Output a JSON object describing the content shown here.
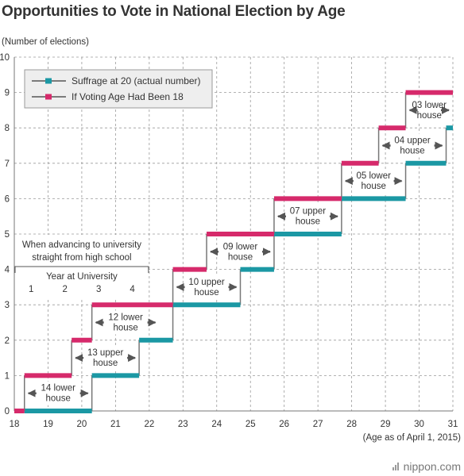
{
  "chart_data": {
    "type": "line",
    "title": "Opportunities to Vote in National Election by Age",
    "ylabel": "(Number of elections)",
    "xlabel": "(Age as of April 1, 2015)",
    "x_ticks": [
      "18",
      "19",
      "20",
      "21",
      "22",
      "23",
      "24",
      "25",
      "26",
      "27",
      "28",
      "29",
      "30",
      "31"
    ],
    "y_ticks": [
      "0",
      "1",
      "2",
      "3",
      "4",
      "5",
      "6",
      "7",
      "8",
      "9",
      "10"
    ],
    "xlim": [
      18,
      31
    ],
    "ylim": [
      0,
      10
    ],
    "grid": true,
    "legend_position": "top-left",
    "series": [
      {
        "name": "Suffrage at 20 (actual number)",
        "color": "#1b98a4",
        "steps": [
          [
            18.3,
            0
          ],
          [
            20.3,
            1
          ],
          [
            21.7,
            2
          ],
          [
            22.7,
            3
          ],
          [
            24.7,
            4
          ],
          [
            25.7,
            5
          ],
          [
            27.7,
            6
          ],
          [
            29.6,
            7
          ],
          [
            30.8,
            8
          ],
          [
            31,
            8
          ]
        ]
      },
      {
        "name": "If Voting Age Had Been 18",
        "color": "#d62a6b",
        "steps": [
          [
            18,
            0
          ],
          [
            18.3,
            1
          ],
          [
            19.7,
            2
          ],
          [
            20.3,
            3
          ],
          [
            22.7,
            4
          ],
          [
            23.7,
            5
          ],
          [
            25.7,
            6
          ],
          [
            27.7,
            7
          ],
          [
            28.8,
            8
          ],
          [
            29.6,
            9
          ],
          [
            31,
            9
          ]
        ]
      }
    ],
    "annotations": [
      {
        "lines": [
          "14 lower",
          "house"
        ],
        "x1": 18.3,
        "x2": 20.3,
        "y": 0.5
      },
      {
        "lines": [
          "13 upper",
          "house"
        ],
        "x1": 19.7,
        "x2": 21.7,
        "y": 1.5
      },
      {
        "lines": [
          "12 lower",
          "house"
        ],
        "x1": 20.3,
        "x2": 22.3,
        "y": 2.5
      },
      {
        "lines": [
          "10 upper",
          "house"
        ],
        "x1": 22.7,
        "x2": 24.7,
        "y": 3.5
      },
      {
        "lines": [
          "09 lower",
          "house"
        ],
        "x1": 23.7,
        "x2": 25.7,
        "y": 4.5
      },
      {
        "lines": [
          "07 upper",
          "house"
        ],
        "x1": 25.7,
        "x2": 27.7,
        "y": 5.5
      },
      {
        "lines": [
          "05 lower",
          "house"
        ],
        "x1": 27.7,
        "x2": 29.6,
        "y": 6.5
      },
      {
        "lines": [
          "04 upper",
          "house"
        ],
        "x1": 28.8,
        "x2": 30.8,
        "y": 7.5
      },
      {
        "lines": [
          "03 lower",
          "house"
        ],
        "x1": 29.6,
        "x2": 31.0,
        "y": 8.5
      }
    ],
    "university_note": {
      "lines": [
        "When advancing to university",
        "straight from high school"
      ],
      "sublabel": "Year at University",
      "years": [
        "1",
        "2",
        "3",
        "4"
      ],
      "year_positions": [
        18.5,
        19.5,
        20.5,
        21.5
      ],
      "x1": 18.0,
      "x2": 22.0
    }
  },
  "brand": "nippon.com"
}
